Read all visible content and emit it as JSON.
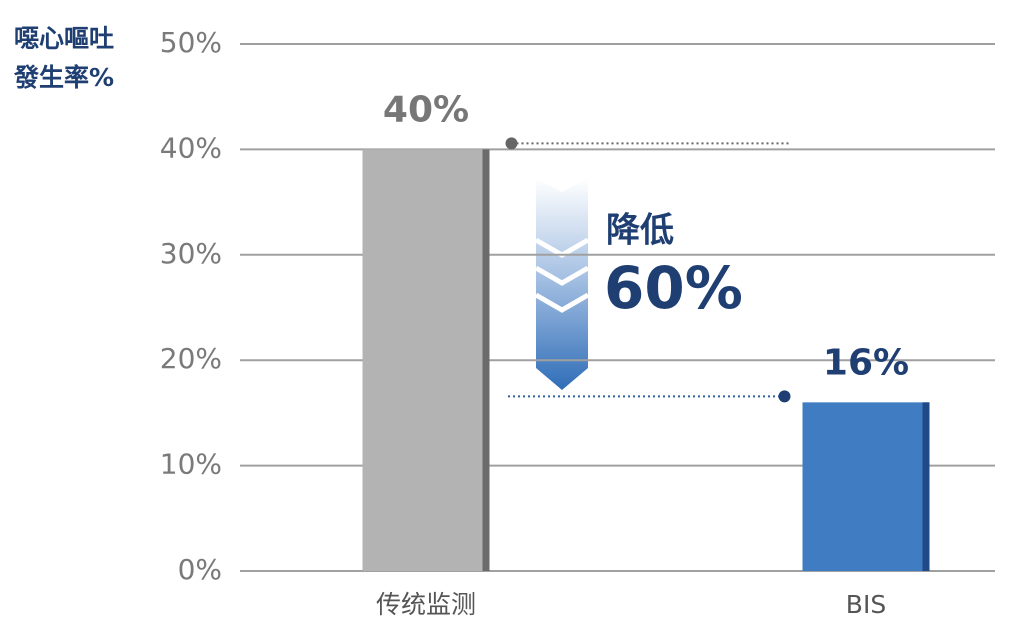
{
  "chart_data": {
    "type": "bar",
    "y_label": [
      "噁心嘔吐",
      "發生率%"
    ],
    "categories": [
      "传统监测",
      "BIS"
    ],
    "values": [
      40,
      16
    ],
    "value_labels": [
      "40%",
      "16%"
    ],
    "colors": [
      "#b3b3b3",
      "#3f7cc2"
    ],
    "edge_colors": [
      "#6b6b6b",
      "#1f4a86"
    ],
    "value_label_colors": [
      "#777777",
      "#1f3f73"
    ],
    "ylim": [
      0,
      50
    ],
    "yticks": [
      {
        "value": 0,
        "label": "0%"
      },
      {
        "value": 10,
        "label": "10%"
      },
      {
        "value": 20,
        "label": "20%"
      },
      {
        "value": 30,
        "label": "30%"
      },
      {
        "value": 40,
        "label": "40%"
      },
      {
        "value": 50,
        "label": "50%"
      }
    ],
    "grid": true,
    "annotation": {
      "line1": "降低",
      "line2": "60%"
    }
  }
}
